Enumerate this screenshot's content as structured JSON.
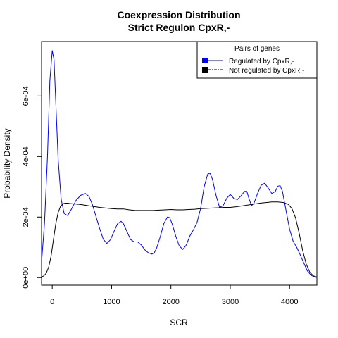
{
  "chart_data": {
    "type": "line",
    "title": "Coexpression Distribution",
    "subtitle": "Strict Regulon CpxR,-",
    "xlabel": "SCR",
    "ylabel": "Probability Density",
    "xlim": [
      -180,
      4460
    ],
    "ylim": [
      -2.5e-05,
      0.00078
    ],
    "x_ticks": [
      {
        "value": 0,
        "label": "0"
      },
      {
        "value": 1000,
        "label": "1000"
      },
      {
        "value": 2000,
        "label": "2000"
      },
      {
        "value": 3000,
        "label": "3000"
      },
      {
        "value": 4000,
        "label": "4000"
      }
    ],
    "y_ticks": [
      {
        "value": 0,
        "label": "0e+00"
      },
      {
        "value": 0.0002,
        "label": "2e-04"
      },
      {
        "value": 0.0004,
        "label": "4e-04"
      },
      {
        "value": 0.0006,
        "label": "6e-04"
      }
    ],
    "grid": false,
    "legend": {
      "title": "Pairs of genes",
      "placement": "top-right",
      "entries": [
        {
          "label": "Regulated by  CpxR,-",
          "swatch_color": "#0000ff",
          "line_color": "#0000ff",
          "line_style": "solid"
        },
        {
          "label": "Not regulated by  CpxR,-",
          "swatch_color": "#000000",
          "line_color": "#000000",
          "line_style": "dashdot"
        }
      ]
    },
    "series": [
      {
        "name": "Regulated by  CpxR,-",
        "color": "#0000ff",
        "x": [
          -180,
          -130,
          -80,
          -40,
          0,
          30,
          60,
          100,
          150,
          200,
          260,
          320,
          400,
          480,
          560,
          620,
          680,
          740,
          800,
          860,
          920,
          980,
          1040,
          1100,
          1160,
          1200,
          1260,
          1320,
          1380,
          1440,
          1500,
          1560,
          1620,
          1680,
          1720,
          1760,
          1820,
          1880,
          1940,
          1980,
          2020,
          2080,
          2140,
          2200,
          2260,
          2320,
          2380,
          2440,
          2500,
          2560,
          2620,
          2660,
          2700,
          2760,
          2820,
          2880,
          2940,
          3000,
          3060,
          3120,
          3180,
          3240,
          3280,
          3320,
          3360,
          3400,
          3460,
          3520,
          3580,
          3640,
          3700,
          3760,
          3800,
          3840,
          3880,
          3940,
          4000,
          4060,
          4120,
          4180,
          4240,
          4300,
          4360,
          4420,
          4460
        ],
        "y": [
          5e-05,
          0.00018,
          0.0004,
          0.00065,
          0.00075,
          0.00072,
          0.00058,
          0.00039,
          0.00026,
          0.000212,
          0.000205,
          0.000225,
          0.000255,
          0.000272,
          0.000278,
          0.000268,
          0.00024,
          0.0002,
          0.000162,
          0.000127,
          0.000113,
          0.000125,
          0.000152,
          0.000178,
          0.000186,
          0.000178,
          0.000152,
          0.000126,
          0.000118,
          0.000118,
          0.000108,
          9.2e-05,
          8.2e-05,
          7.8e-05,
          8.2e-05,
          9.8e-05,
          0.000135,
          0.000178,
          0.0002,
          0.000198,
          0.000178,
          0.000138,
          0.000105,
          9.3e-05,
          0.000108,
          0.000138,
          0.000158,
          0.000182,
          0.000228,
          0.0003,
          0.000342,
          0.000345,
          0.000325,
          0.000272,
          0.000232,
          0.000238,
          0.000262,
          0.000275,
          0.000262,
          0.000258,
          0.00027,
          0.000285,
          0.000285,
          0.000258,
          0.000238,
          0.000246,
          0.000278,
          0.000305,
          0.000312,
          0.000296,
          0.000278,
          0.000285,
          0.000302,
          0.000304,
          0.000285,
          0.000222,
          0.00016,
          0.00012,
          0.0001,
          7.5e-05,
          4.8e-05,
          2.2e-05,
          8e-06,
          2e-06,
          5e-07
        ]
      },
      {
        "name": "Not regulated by  CpxR,-",
        "color": "#000000",
        "x": [
          -180,
          -140,
          -100,
          -60,
          -20,
          20,
          60,
          100,
          140,
          180,
          220,
          260,
          300,
          400,
          500,
          600,
          700,
          800,
          900,
          1000,
          1100,
          1200,
          1300,
          1400,
          1500,
          1600,
          1700,
          1800,
          1900,
          2000,
          2100,
          2200,
          2300,
          2400,
          2500,
          2600,
          2700,
          2800,
          2900,
          3000,
          3100,
          3200,
          3300,
          3400,
          3500,
          3600,
          3700,
          3800,
          3900,
          3980,
          4040,
          4100,
          4160,
          4220,
          4280,
          4340,
          4400,
          4460
        ],
        "y": [
          2e-06,
          6e-06,
          1.5e-05,
          3.5e-05,
          7e-05,
          0.000125,
          0.000178,
          0.000215,
          0.000236,
          0.000244,
          0.000246,
          0.000246,
          0.000245,
          0.000243,
          0.000241,
          0.000238,
          0.000235,
          0.000232,
          0.00023,
          0.000228,
          0.000227,
          0.000227,
          0.000224,
          0.000222,
          0.000222,
          0.000222,
          0.000222,
          0.000223,
          0.000224,
          0.000225,
          0.000224,
          0.000224,
          0.000225,
          0.000226,
          0.000228,
          0.000229,
          0.00023,
          0.000231,
          0.000232,
          0.000232,
          0.000234,
          0.000237,
          0.00024,
          0.000243,
          0.000246,
          0.000248,
          0.00025,
          0.00025,
          0.000248,
          0.000242,
          0.000228,
          0.000198,
          0.000148,
          9e-05,
          4.5e-05,
          1.8e-05,
          6e-06,
          2e-06
        ]
      }
    ]
  }
}
